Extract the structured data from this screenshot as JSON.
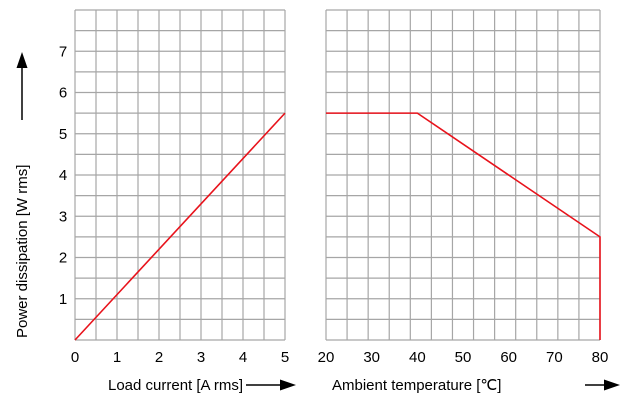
{
  "chart_data": [
    {
      "type": "line",
      "panel": "left",
      "xlabel": "Load current [A rms]",
      "ylabel": "Power dissipation [W rms]",
      "xlim": [
        0,
        5
      ],
      "ylim": [
        0,
        8
      ],
      "xticks": [
        "0",
        "1",
        "2",
        "3",
        "4",
        "5"
      ],
      "yticks": [
        "1",
        "2",
        "3",
        "4",
        "5",
        "6",
        "7"
      ],
      "grid": true,
      "series": [
        {
          "color": "#e8121b",
          "x": [
            0,
            5
          ],
          "y": [
            0,
            5.5
          ]
        }
      ]
    },
    {
      "type": "line",
      "panel": "right",
      "xlabel": "Ambient temperature [℃]",
      "xlim": [
        20,
        80
      ],
      "ylim": [
        0,
        8
      ],
      "xticks": [
        "20",
        "30",
        "40",
        "50",
        "60",
        "70",
        "80"
      ],
      "grid": true,
      "series": [
        {
          "color": "#e8121b",
          "x": [
            20,
            40,
            80,
            80
          ],
          "y": [
            5.5,
            5.5,
            2.5,
            0
          ]
        }
      ]
    }
  ]
}
